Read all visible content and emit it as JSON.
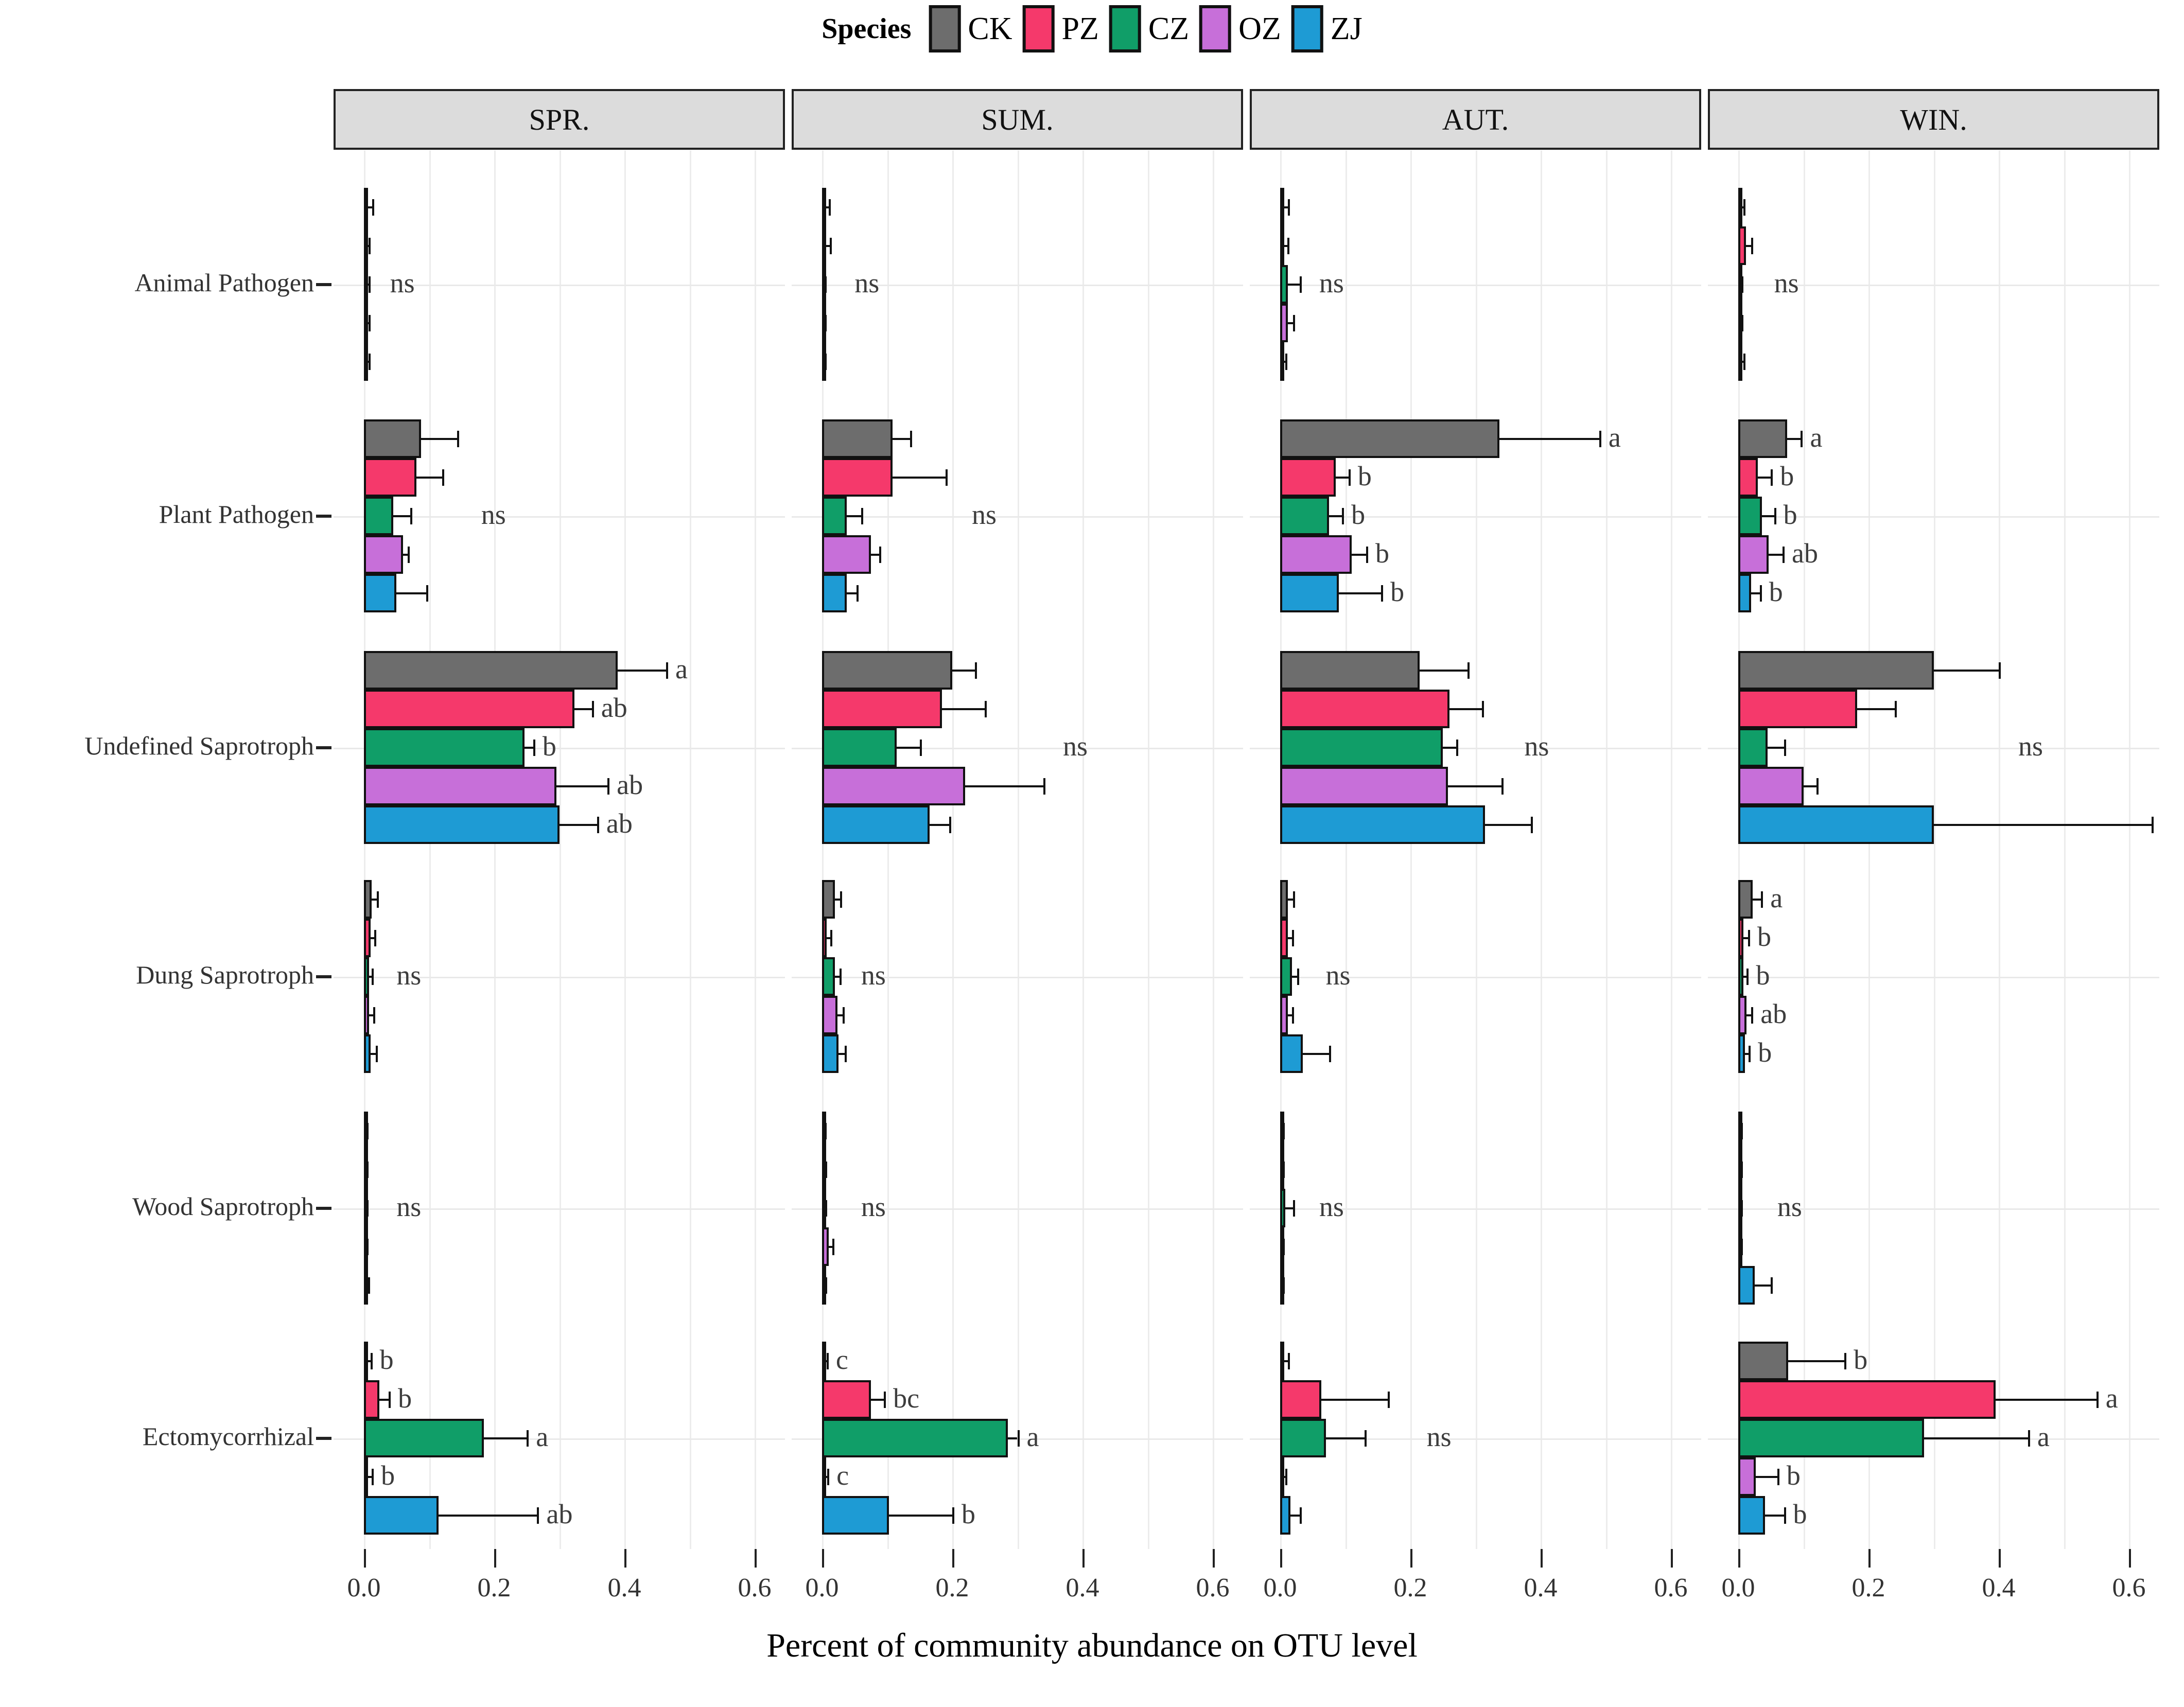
{
  "legend": {
    "title": "Species",
    "items": [
      {
        "label": "CK",
        "color": "#6d6d6d"
      },
      {
        "label": "PZ",
        "color": "#F5396B"
      },
      {
        "label": "CZ",
        "color": "#109E68"
      },
      {
        "label": "OZ",
        "color": "#C76FD9"
      },
      {
        "label": "ZJ",
        "color": "#1E9BD4"
      }
    ]
  },
  "axis": {
    "title": "Percent of community abundance on OTU level",
    "tick_labels": [
      "0.0",
      "0.2",
      "0.4",
      "0.6"
    ],
    "tick_values": [
      0,
      0.2,
      0.4,
      0.6
    ],
    "range": [
      0,
      0.65
    ]
  },
  "chart_data": {
    "type": "bar",
    "orientation": "horizontal",
    "facets": [
      "SPR.",
      "SUM.",
      "AUT.",
      "WIN."
    ],
    "categories": [
      "Animal Pathogen",
      "Plant Pathogen",
      "Undefined Saprotroph",
      "Dung Saprotroph",
      "Wood Saprotroph",
      "Ectomycorrhizal"
    ],
    "series_names": [
      "CK",
      "PZ",
      "CZ",
      "OZ",
      "ZJ"
    ],
    "series_colors": [
      "#6d6d6d",
      "#F5396B",
      "#109E68",
      "#C76FD9",
      "#1E9BD4"
    ],
    "panels": [
      {
        "facet": "SPR.",
        "rows": [
          {
            "category": "Animal Pathogen",
            "values": [
              0.006,
              0.004,
              0.004,
              0.004,
              0.004
            ],
            "errors": [
              0.013,
              0.007,
              0.007,
              0.007,
              0.007
            ],
            "letters": null,
            "sig": "ns",
            "sig_x": 0.04
          },
          {
            "category": "Plant Pathogen",
            "values": [
              0.088,
              0.081,
              0.045,
              0.06,
              0.05
            ],
            "errors": [
              0.143,
              0.12,
              0.071,
              0.067,
              0.096
            ],
            "letters": null,
            "sig": "ns",
            "sig_x": 0.18
          },
          {
            "category": "Undefined Saprotroph",
            "values": [
              0.39,
              0.323,
              0.247,
              0.296,
              0.3
            ],
            "errors": [
              0.464,
              0.35,
              0.26,
              0.374,
              0.358
            ],
            "letters": [
              "a",
              "ab",
              "b",
              "ab",
              "ab"
            ],
            "sig": null,
            "sig_x": null
          },
          {
            "category": "Dung Saprotroph",
            "values": [
              0.012,
              0.01,
              0.008,
              0.008,
              0.01
            ],
            "errors": [
              0.02,
              0.016,
              0.012,
              0.014,
              0.018
            ],
            "letters": null,
            "sig": "ns",
            "sig_x": 0.05
          },
          {
            "category": "Wood Saprotroph",
            "values": [
              0.002,
              0.002,
              0.002,
              0.002,
              0.003
            ],
            "errors": [
              0.004,
              0.004,
              0.004,
              0.004,
              0.006
            ],
            "letters": null,
            "sig": "ns",
            "sig_x": 0.05
          },
          {
            "category": "Ectomycorrhizal",
            "values": [
              0.004,
              0.024,
              0.184,
              0.005,
              0.115
            ],
            "errors": [
              0.01,
              0.038,
              0.25,
              0.012,
              0.266
            ],
            "letters": [
              "b",
              "b",
              "a",
              "b",
              "ab"
            ],
            "sig": null,
            "sig_x": null
          }
        ]
      },
      {
        "facet": "SUM.",
        "rows": [
          {
            "category": "Animal Pathogen",
            "values": [
              0.005,
              0.006,
              0.002,
              0.002,
              0.002
            ],
            "errors": [
              0.01,
              0.012,
              0.004,
              0.004,
              0.004
            ],
            "letters": null,
            "sig": "ns",
            "sig_x": 0.05
          },
          {
            "category": "Plant Pathogen",
            "values": [
              0.108,
              0.108,
              0.038,
              0.075,
              0.038
            ],
            "errors": [
              0.135,
              0.19,
              0.06,
              0.088,
              0.053
            ],
            "letters": null,
            "sig": "ns",
            "sig_x": 0.23
          },
          {
            "category": "Undefined Saprotroph",
            "values": [
              0.2,
              0.184,
              0.115,
              0.22,
              0.165
            ],
            "errors": [
              0.235,
              0.25,
              0.15,
              0.34,
              0.195
            ],
            "letters": null,
            "sig": "ns",
            "sig_x": 0.37
          },
          {
            "category": "Dung Saprotroph",
            "values": [
              0.02,
              0.007,
              0.02,
              0.024,
              0.025
            ],
            "errors": [
              0.028,
              0.013,
              0.027,
              0.032,
              0.035
            ],
            "letters": null,
            "sig": "ns",
            "sig_x": 0.06
          },
          {
            "category": "Wood Saprotroph",
            "values": [
              0.002,
              0.003,
              0.003,
              0.01,
              0.003
            ],
            "errors": [
              0.004,
              0.005,
              0.005,
              0.016,
              0.005
            ],
            "letters": null,
            "sig": "ns",
            "sig_x": 0.06
          },
          {
            "category": "Ectomycorrhizal",
            "values": [
              0.003,
              0.075,
              0.285,
              0.004,
              0.103
            ],
            "errors": [
              0.007,
              0.095,
              0.3,
              0.008,
              0.2
            ],
            "letters": [
              "c",
              "bc",
              "a",
              "c",
              "b"
            ],
            "sig": null,
            "sig_x": null
          }
        ]
      },
      {
        "facet": "AUT.",
        "rows": [
          {
            "category": "Animal Pathogen",
            "values": [
              0.006,
              0.006,
              0.012,
              0.012,
              0.004
            ],
            "errors": [
              0.012,
              0.011,
              0.03,
              0.02,
              0.008
            ],
            "letters": null,
            "sig": "ns",
            "sig_x": 0.06
          },
          {
            "category": "Plant Pathogen",
            "values": [
              0.337,
              0.085,
              0.075,
              0.11,
              0.09
            ],
            "errors": [
              0.49,
              0.105,
              0.095,
              0.132,
              0.155
            ],
            "letters": [
              "a",
              "b",
              "b",
              "b",
              "b"
            ],
            "sig": null,
            "sig_x": null
          },
          {
            "category": "Undefined Saprotroph",
            "values": [
              0.214,
              0.26,
              0.25,
              0.258,
              0.315
            ],
            "errors": [
              0.288,
              0.31,
              0.27,
              0.34,
              0.385
            ],
            "letters": null,
            "sig": "ns",
            "sig_x": 0.375
          },
          {
            "category": "Dung Saprotroph",
            "values": [
              0.012,
              0.012,
              0.018,
              0.012,
              0.035
            ],
            "errors": [
              0.02,
              0.018,
              0.026,
              0.018,
              0.075
            ],
            "letters": null,
            "sig": "ns",
            "sig_x": 0.07
          },
          {
            "category": "Wood Saprotroph",
            "values": [
              0.002,
              0.002,
              0.008,
              0.002,
              0.002
            ],
            "errors": [
              0.004,
              0.004,
              0.02,
              0.004,
              0.004
            ],
            "letters": null,
            "sig": "ns",
            "sig_x": 0.06
          },
          {
            "category": "Ectomycorrhizal",
            "values": [
              0.005,
              0.063,
              0.07,
              0.004,
              0.016
            ],
            "errors": [
              0.012,
              0.165,
              0.13,
              0.008,
              0.03
            ],
            "letters": null,
            "sig": "ns",
            "sig_x": 0.225
          }
        ]
      },
      {
        "facet": "WIN.",
        "rows": [
          {
            "category": "Animal Pathogen",
            "values": [
              0.004,
              0.012,
              0.003,
              0.003,
              0.004
            ],
            "errors": [
              0.008,
              0.02,
              0.005,
              0.005,
              0.008
            ],
            "letters": null,
            "sig": "ns",
            "sig_x": 0.055
          },
          {
            "category": "Plant Pathogen",
            "values": [
              0.075,
              0.03,
              0.036,
              0.047,
              0.02
            ],
            "errors": [
              0.096,
              0.05,
              0.055,
              0.068,
              0.033
            ],
            "letters": [
              "a",
              "b",
              "b",
              "ab",
              "b"
            ],
            "sig": null,
            "sig_x": null
          },
          {
            "category": "Undefined Saprotroph",
            "values": [
              0.3,
              0.183,
              0.045,
              0.1,
              0.3
            ],
            "errors": [
              0.4,
              0.24,
              0.07,
              0.12,
              0.635
            ],
            "letters": null,
            "sig": "ns",
            "sig_x": 0.43
          },
          {
            "category": "Dung Saprotroph",
            "values": [
              0.022,
              0.008,
              0.008,
              0.013,
              0.01
            ],
            "errors": [
              0.035,
              0.015,
              0.013,
              0.02,
              0.016
            ],
            "letters": [
              "a",
              "b",
              "b",
              "ab",
              "b"
            ],
            "sig": null,
            "sig_x": null
          },
          {
            "category": "Wood Saprotroph",
            "values": [
              0.002,
              0.002,
              0.002,
              0.002,
              0.025
            ],
            "errors": [
              0.004,
              0.004,
              0.004,
              0.004,
              0.05
            ],
            "letters": null,
            "sig": "ns",
            "sig_x": 0.06
          },
          {
            "category": "Ectomycorrhizal",
            "values": [
              0.077,
              0.395,
              0.285,
              0.027,
              0.041
            ],
            "errors": [
              0.163,
              0.55,
              0.445,
              0.06,
              0.07
            ],
            "letters": [
              "b",
              "a",
              "a",
              "b",
              "b"
            ],
            "sig": null,
            "sig_x": null
          }
        ]
      }
    ]
  }
}
